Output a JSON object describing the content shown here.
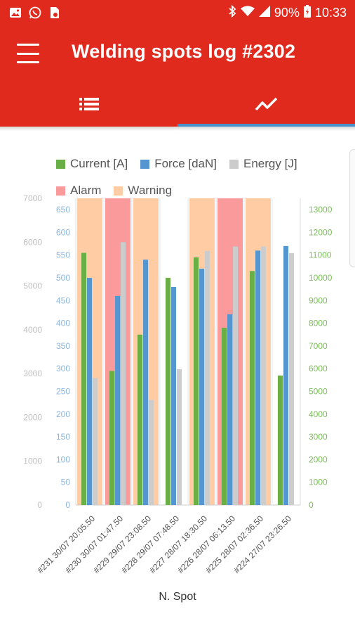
{
  "status_bar": {
    "battery": "90%",
    "time": "10:33",
    "left_icons": [
      "image-icon",
      "whatsapp-icon",
      "file-icon"
    ],
    "right_icons": [
      "bluetooth-icon",
      "wifi-icon",
      "signal-icon",
      "battery-icon"
    ]
  },
  "app_bar": {
    "title": "Welding spots log #2302",
    "menu_icon": "menu-icon"
  },
  "tabs": [
    {
      "icon": "list-icon",
      "selected": false
    },
    {
      "icon": "trend-chart-icon",
      "selected": true
    }
  ],
  "colors": {
    "primary": "#e02a1e",
    "tab_indicator": "#4a90c8",
    "current": "#6aaf45",
    "force": "#5595d0",
    "energy": "#cccccc",
    "alarm": "#fa9a9a",
    "warning": "#ffcca4",
    "energy_axis": "#c0c0c0",
    "force_axis": "#8ab6e0",
    "current_axis": "#7cc05a"
  },
  "chart_data": {
    "type": "bar",
    "legend": [
      {
        "key": "current",
        "name": "Current [A]"
      },
      {
        "key": "force",
        "name": "Force [daN]"
      },
      {
        "key": "energy",
        "name": "Energy [J]"
      },
      {
        "key": "alarm",
        "name": "Alarm"
      },
      {
        "key": "warning",
        "name": "Warning"
      }
    ],
    "categories": [
      "#231 30/07 20:05.50",
      "#230 30/07 01:47.50",
      "#229 29/07 23:08.50",
      "#228 29/07 07:48.50",
      "#227 28/07 18:30.50",
      "#226 28/07 06:13.50",
      "#225 28/07 02:36.50",
      "#224 27/07 23:26.50"
    ],
    "series": [
      {
        "key": "current",
        "name": "Current [A]",
        "axis": "right",
        "values": [
          11100,
          5900,
          7500,
          10000,
          10900,
          7800,
          10300,
          5700
        ]
      },
      {
        "key": "force",
        "name": "Force [daN]",
        "axis": "left-inner",
        "values": [
          500,
          460,
          540,
          480,
          520,
          420,
          560,
          570
        ]
      },
      {
        "key": "energy",
        "name": "Energy [J]",
        "axis": "left-outer",
        "values": [
          2900,
          6000,
          2400,
          3100,
          5800,
          5900,
          5900,
          5750
        ]
      }
    ],
    "status": [
      "warning",
      "alarm",
      "warning",
      "none",
      "warning",
      "alarm",
      "warning",
      "none"
    ],
    "axes": {
      "left_outer": {
        "ylim": [
          0,
          7000
        ],
        "ticks": [
          "0",
          "1000",
          "2000",
          "3000",
          "4000",
          "5000",
          "6000",
          "7000"
        ]
      },
      "left_inner": {
        "ylim": [
          0,
          675
        ],
        "ticks": [
          "0",
          "50",
          "100",
          "150",
          "200",
          "250",
          "300",
          "350",
          "400",
          "450",
          "500",
          "550",
          "600",
          "650"
        ]
      },
      "right": {
        "ylim": [
          0,
          13500
        ],
        "ticks": [
          "0",
          "1000",
          "2000",
          "3000",
          "4000",
          "5000",
          "6000",
          "7000",
          "8000",
          "9000",
          "10000",
          "11000",
          "12000",
          "13000"
        ]
      }
    },
    "xlabel": "N. Spot",
    "grid": true
  }
}
